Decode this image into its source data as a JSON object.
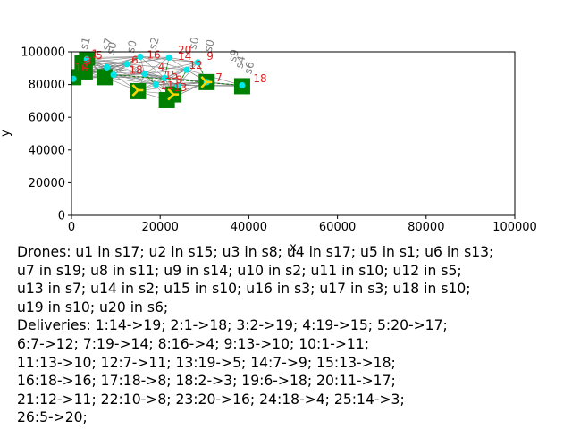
{
  "chart_data": {
    "type": "scatter",
    "title": "",
    "xlabel": "x",
    "ylabel": "y",
    "xlim": [
      0,
      100000
    ],
    "ylim": [
      0,
      100000
    ],
    "x_ticks": [
      "0",
      "20000",
      "40000",
      "60000",
      "80000",
      "100000"
    ],
    "y_ticks": [
      "0",
      "20000",
      "40000",
      "60000",
      "80000",
      "100000"
    ],
    "grid": false,
    "colors": {
      "station": "#008000",
      "customer": "#00e5e5",
      "route": "#808080",
      "label": "#dd2222",
      "drone": "#ffd700"
    },
    "stations": [
      {
        "x": 400,
        "y": 84500
      },
      {
        "x": 2500,
        "y": 93000
      },
      {
        "x": 3500,
        "y": 96500
      },
      {
        "x": 3000,
        "y": 88000
      },
      {
        "x": 7500,
        "y": 84500
      },
      {
        "x": 15000,
        "y": 76000
      },
      {
        "x": 21500,
        "y": 70500
      },
      {
        "x": 23000,
        "y": 74000
      },
      {
        "x": 30500,
        "y": 81500
      },
      {
        "x": 38500,
        "y": 79000
      }
    ],
    "customers": [
      {
        "x": 400,
        "y": 83500
      },
      {
        "x": 8000,
        "y": 90500
      },
      {
        "x": 12500,
        "y": 92500
      },
      {
        "x": 15500,
        "y": 97000
      },
      {
        "x": 16500,
        "y": 86500
      },
      {
        "x": 19000,
        "y": 80000
      },
      {
        "x": 21000,
        "y": 84000
      },
      {
        "x": 22000,
        "y": 96500
      },
      {
        "x": 24000,
        "y": 79500
      },
      {
        "x": 26000,
        "y": 89000
      },
      {
        "x": 28500,
        "y": 93500
      },
      {
        "x": 30500,
        "y": 81500
      },
      {
        "x": 38500,
        "y": 79500
      },
      {
        "x": 9500,
        "y": 86000
      },
      {
        "x": 3500,
        "y": 95500
      }
    ],
    "drones": [
      {
        "x": 30500,
        "y": 81500
      },
      {
        "x": 23000,
        "y": 74000
      },
      {
        "x": 15000,
        "y": 76500
      }
    ],
    "red_labels": [
      {
        "text": "20",
        "x": 24000,
        "y": 99000
      },
      {
        "text": "16",
        "x": 17000,
        "y": 96000
      },
      {
        "text": "14",
        "x": 24000,
        "y": 95000
      },
      {
        "text": "9",
        "x": 30500,
        "y": 95000
      },
      {
        "text": "6",
        "x": 13500,
        "y": 92500
      },
      {
        "text": "1",
        "x": 4500,
        "y": 96500
      },
      {
        "text": "5",
        "x": 5500,
        "y": 95500
      },
      {
        "text": "3",
        "x": 3000,
        "y": 92000
      },
      {
        "text": "2",
        "x": 2500,
        "y": 89500
      },
      {
        "text": "10",
        "x": 700,
        "y": 88000
      },
      {
        "text": "4",
        "x": 19500,
        "y": 88500
      },
      {
        "text": "12",
        "x": 26500,
        "y": 89500
      },
      {
        "text": "18",
        "x": 13000,
        "y": 86500
      },
      {
        "text": "15",
        "x": 21000,
        "y": 83500
      },
      {
        "text": "8",
        "x": 23500,
        "y": 80500
      },
      {
        "text": "11",
        "x": 20000,
        "y": 77000
      },
      {
        "text": "13",
        "x": 23000,
        "y": 76000
      },
      {
        "text": "7",
        "x": 32500,
        "y": 82000
      },
      {
        "text": "18",
        "x": 41000,
        "y": 81500
      }
    ],
    "gray_labels": [
      {
        "text": "s1",
        "x": 3500,
        "y": 101000,
        "rot": -75
      },
      {
        "text": "s7",
        "x": 8500,
        "y": 100500,
        "rot": -75
      },
      {
        "text": "s0",
        "x": 9500,
        "y": 98000,
        "rot": -75
      },
      {
        "text": "s0",
        "x": 14000,
        "y": 99000,
        "rot": -75
      },
      {
        "text": "s2",
        "x": 19000,
        "y": 101000,
        "rot": -75
      },
      {
        "text": "s0",
        "x": 28000,
        "y": 101000,
        "rot": -75
      },
      {
        "text": "s0",
        "x": 31500,
        "y": 99500,
        "rot": -75
      },
      {
        "text": "s9",
        "x": 37000,
        "y": 93500,
        "rot": -75
      },
      {
        "text": "s4",
        "x": 38500,
        "y": 89500,
        "rot": -75
      },
      {
        "text": "s6",
        "x": 40500,
        "y": 86000,
        "rot": -75
      }
    ]
  },
  "caption": {
    "lines": [
      "Drones: u1 in s17; u2 in s15; u3 in s8; u4 in s17; u5 in s1; u6 in s13;",
      "u7 in s19; u8 in s11; u9 in s14; u10 in s2; u11 in s10; u12 in s5;",
      "u13 in s7; u14 in s2; u15 in s10; u16 in s3; u17 in s3; u18 in s10;",
      "u19 in s10; u20 in s6;",
      "Deliveries: 1:14->19; 2:1->18; 3:2->19; 4:19->15; 5:20->17;",
      "6:7->12; 7:19->14; 8:16->4; 9:13->10; 10:1->11;",
      "11:13->10; 12:7->11; 13:19->5; 14:7->9; 15:13->18;",
      "16:18->16; 17:18->8; 18:2->3; 19:6->18; 20:11->17;",
      "21:12->11; 22:10->8; 23:20->16; 24:18->4; 25:14->3;",
      "26:5->20;"
    ]
  }
}
